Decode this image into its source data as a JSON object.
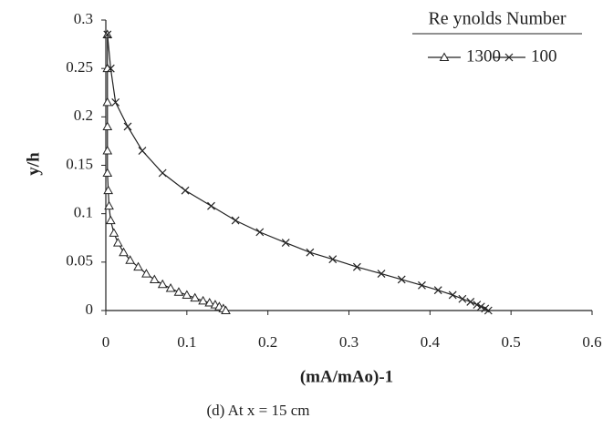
{
  "chart_data": {
    "type": "line",
    "x_label": "(mA/mAo)-1",
    "y_label": "y/h",
    "caption": "(d) At x = 15 cm",
    "legend_title": "Re ynolds Number",
    "legend_position": "upper right",
    "xlim": [
      0,
      0.6
    ],
    "xticks": [
      0,
      0.1,
      0.2,
      0.3,
      0.4,
      0.5,
      0.6
    ],
    "ylim": [
      0,
      0.3
    ],
    "yticks": [
      0,
      0.05,
      0.1,
      0.15,
      0.2,
      0.25,
      0.3
    ],
    "grid": false,
    "series": [
      {
        "name": "1300",
        "color": "#222222",
        "marker": "triangle",
        "x": [
          0.002,
          0.002,
          0.002,
          0.002,
          0.002,
          0.002,
          0.003,
          0.004,
          0.006,
          0.01,
          0.015,
          0.022,
          0.03,
          0.04,
          0.05,
          0.06,
          0.07,
          0.08,
          0.09,
          0.1,
          0.11,
          0.12,
          0.128,
          0.135,
          0.14,
          0.145,
          0.148
        ],
        "values": [
          0.285,
          0.25,
          0.215,
          0.19,
          0.165,
          0.142,
          0.124,
          0.108,
          0.093,
          0.08,
          0.07,
          0.06,
          0.052,
          0.045,
          0.038,
          0.032,
          0.027,
          0.023,
          0.019,
          0.016,
          0.013,
          0.01,
          0.008,
          0.006,
          0.004,
          0.002,
          0
        ]
      },
      {
        "name": "100",
        "color": "#222222",
        "marker": "x",
        "x": [
          0.002,
          0.006,
          0.012,
          0.027,
          0.045,
          0.07,
          0.098,
          0.13,
          0.16,
          0.19,
          0.222,
          0.252,
          0.28,
          0.31,
          0.34,
          0.365,
          0.39,
          0.41,
          0.428,
          0.44,
          0.45,
          0.458,
          0.463,
          0.468,
          0.472
        ],
        "values": [
          0.285,
          0.25,
          0.215,
          0.19,
          0.165,
          0.142,
          0.124,
          0.108,
          0.093,
          0.081,
          0.07,
          0.06,
          0.053,
          0.045,
          0.038,
          0.032,
          0.026,
          0.021,
          0.016,
          0.012,
          0.009,
          0.006,
          0.004,
          0.002,
          0
        ]
      }
    ]
  }
}
